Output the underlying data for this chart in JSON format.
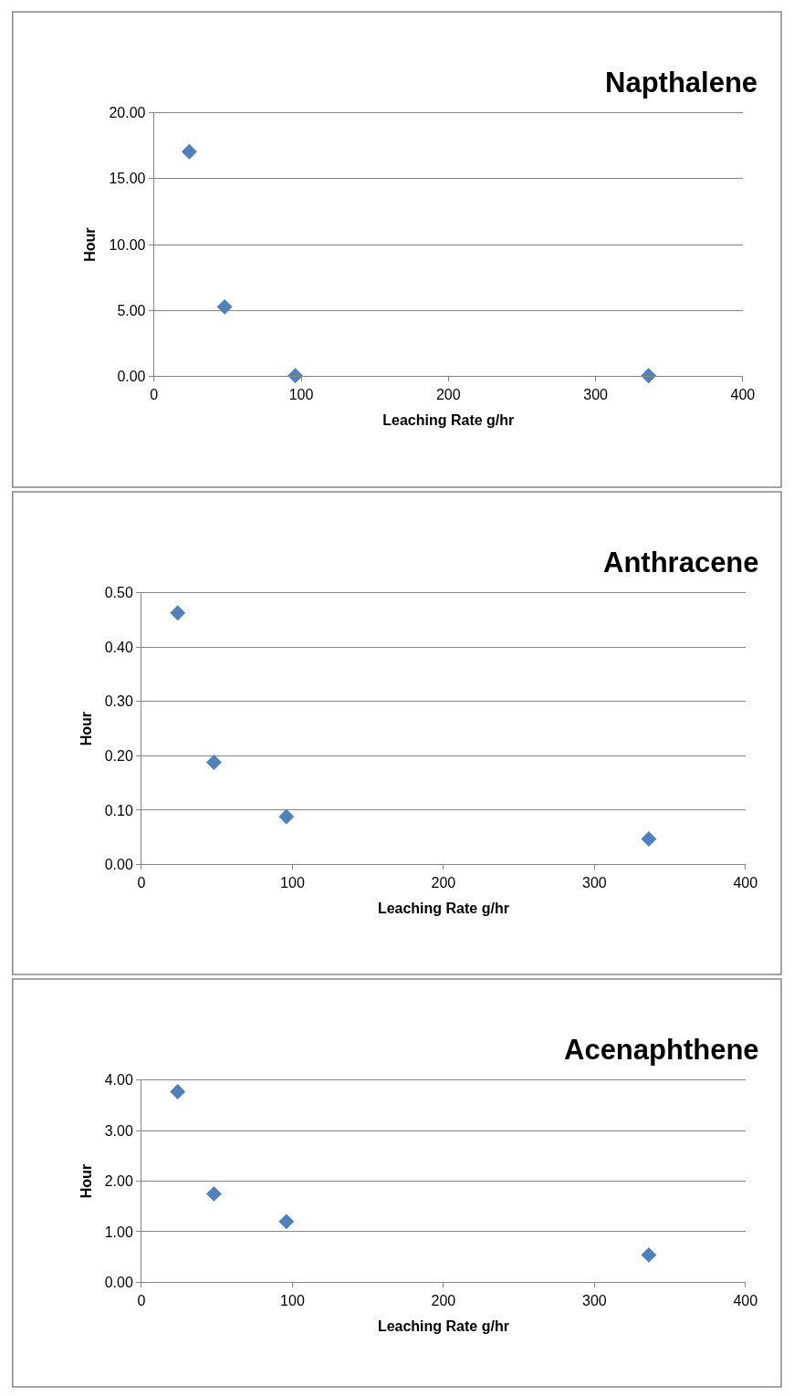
{
  "chart_data": [
    {
      "type": "scatter",
      "title": "Napthalene",
      "xlabel": "Leaching Rate g/hr",
      "ylabel": "Hour",
      "marker": "diamond",
      "grid": "y",
      "x": [
        24,
        48,
        96,
        336
      ],
      "series": [
        {
          "color": "#4f81bd",
          "values": [
            17.05,
            5.27,
            0.05,
            0.05
          ]
        }
      ],
      "xlim": [
        0,
        400
      ],
      "xticks": [
        0,
        100,
        200,
        300,
        400
      ],
      "ylim": [
        0,
        20
      ],
      "yticks": [
        {
          "value": 0,
          "label": "0.00"
        },
        {
          "value": 5,
          "label": "5.00"
        },
        {
          "value": 10,
          "label": "10.00"
        },
        {
          "value": 15,
          "label": "15.00"
        },
        {
          "value": 20,
          "label": "20.00"
        }
      ]
    },
    {
      "type": "scatter",
      "title": "Anthracene",
      "xlabel": "Leaching Rate g/hr",
      "ylabel": "Hour",
      "marker": "diamond",
      "grid": "y",
      "x": [
        24,
        48,
        96,
        336
      ],
      "series": [
        {
          "color": "#4f81bd",
          "values": [
            0.463,
            0.188,
            0.088,
            0.047
          ]
        }
      ],
      "xlim": [
        0,
        400
      ],
      "xticks": [
        0,
        100,
        200,
        300,
        400
      ],
      "ylim": [
        0,
        0.5
      ],
      "yticks": [
        {
          "value": 0,
          "label": "0.00"
        },
        {
          "value": 0.1,
          "label": "0.10"
        },
        {
          "value": 0.2,
          "label": "0.20"
        },
        {
          "value": 0.3,
          "label": "0.30"
        },
        {
          "value": 0.4,
          "label": "0.40"
        },
        {
          "value": 0.5,
          "label": "0.50"
        }
      ]
    },
    {
      "type": "scatter",
      "title": "Acenaphthene",
      "xlabel": "Leaching Rate g/hr",
      "ylabel": "Hour",
      "marker": "diamond",
      "grid": "y",
      "x": [
        24,
        48,
        96,
        336
      ],
      "series": [
        {
          "color": "#4f81bd",
          "values": [
            3.77,
            1.75,
            1.2,
            0.54
          ]
        }
      ],
      "xlim": [
        0,
        400
      ],
      "xticks": [
        0,
        100,
        200,
        300,
        400
      ],
      "ylim": [
        0,
        4
      ],
      "yticks": [
        {
          "value": 0,
          "label": "0.00"
        },
        {
          "value": 1,
          "label": "1.00"
        },
        {
          "value": 2,
          "label": "2.00"
        },
        {
          "value": 3,
          "label": "3.00"
        },
        {
          "value": 4,
          "label": "4.00"
        }
      ]
    }
  ]
}
